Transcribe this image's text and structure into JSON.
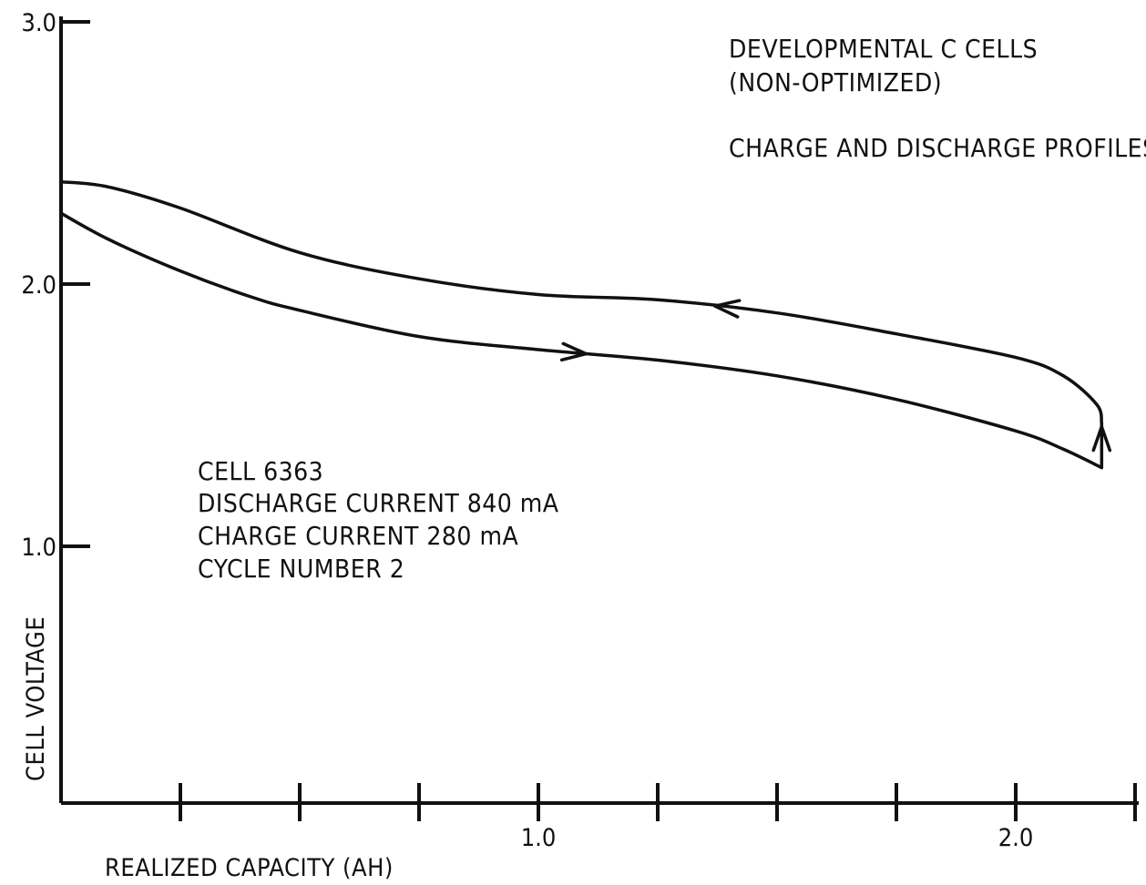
{
  "chart_data": {
    "type": "line",
    "title_lines": [
      "DEVELOPMENTAL C CELLS",
      "(NON-OPTIMIZED)"
    ],
    "subtitle": "CHARGE AND DISCHARGE PROFILES",
    "annotation_lines": [
      "CELL 6363",
      "DISCHARGE CURRENT 840 mA",
      "CHARGE CURRENT 280 mA",
      "CYCLE NUMBER 2"
    ],
    "xlabel": "REALIZED CAPACITY (AH)",
    "ylabel": "CELL VOLTAGE",
    "xlim": [
      0,
      2.25
    ],
    "ylim": [
      0.95,
      3.0
    ],
    "x_ticks": [
      0.25,
      0.5,
      0.75,
      1.0,
      1.25,
      1.5,
      1.75,
      2.0,
      2.25
    ],
    "x_tick_labels": [
      {
        "value": 1.0,
        "label": "1.0"
      },
      {
        "value": 2.0,
        "label": "2.0"
      }
    ],
    "y_ticks": [
      {
        "value": 3.0,
        "label": "3.0"
      },
      {
        "value": 2.0,
        "label": "2.0"
      },
      {
        "value": 1.0,
        "label": "1.0"
      }
    ],
    "series": [
      {
        "direction": "discharge",
        "x": [
          0.0,
          0.1,
          0.25,
          0.4,
          0.5,
          0.75,
          1.0,
          1.25,
          1.5,
          1.75,
          2.0,
          2.1,
          2.18
        ],
        "y": [
          2.27,
          2.17,
          2.05,
          1.95,
          1.9,
          1.8,
          1.75,
          1.71,
          1.65,
          1.56,
          1.44,
          1.37,
          1.3
        ]
      },
      {
        "direction": "charge",
        "x": [
          2.18,
          2.17,
          2.1,
          2.0,
          1.75,
          1.5,
          1.25,
          1.0,
          0.75,
          0.5,
          0.25,
          0.1,
          0.0
        ],
        "y": [
          1.47,
          1.54,
          1.65,
          1.72,
          1.81,
          1.89,
          1.94,
          1.96,
          2.02,
          2.12,
          2.29,
          2.37,
          2.39
        ]
      }
    ],
    "arrows": [
      {
        "series": "discharge",
        "x": 1.1
      },
      {
        "series": "charge",
        "x": 1.37
      },
      {
        "series": "turnaround",
        "x": 2.18
      }
    ],
    "grid": false
  }
}
